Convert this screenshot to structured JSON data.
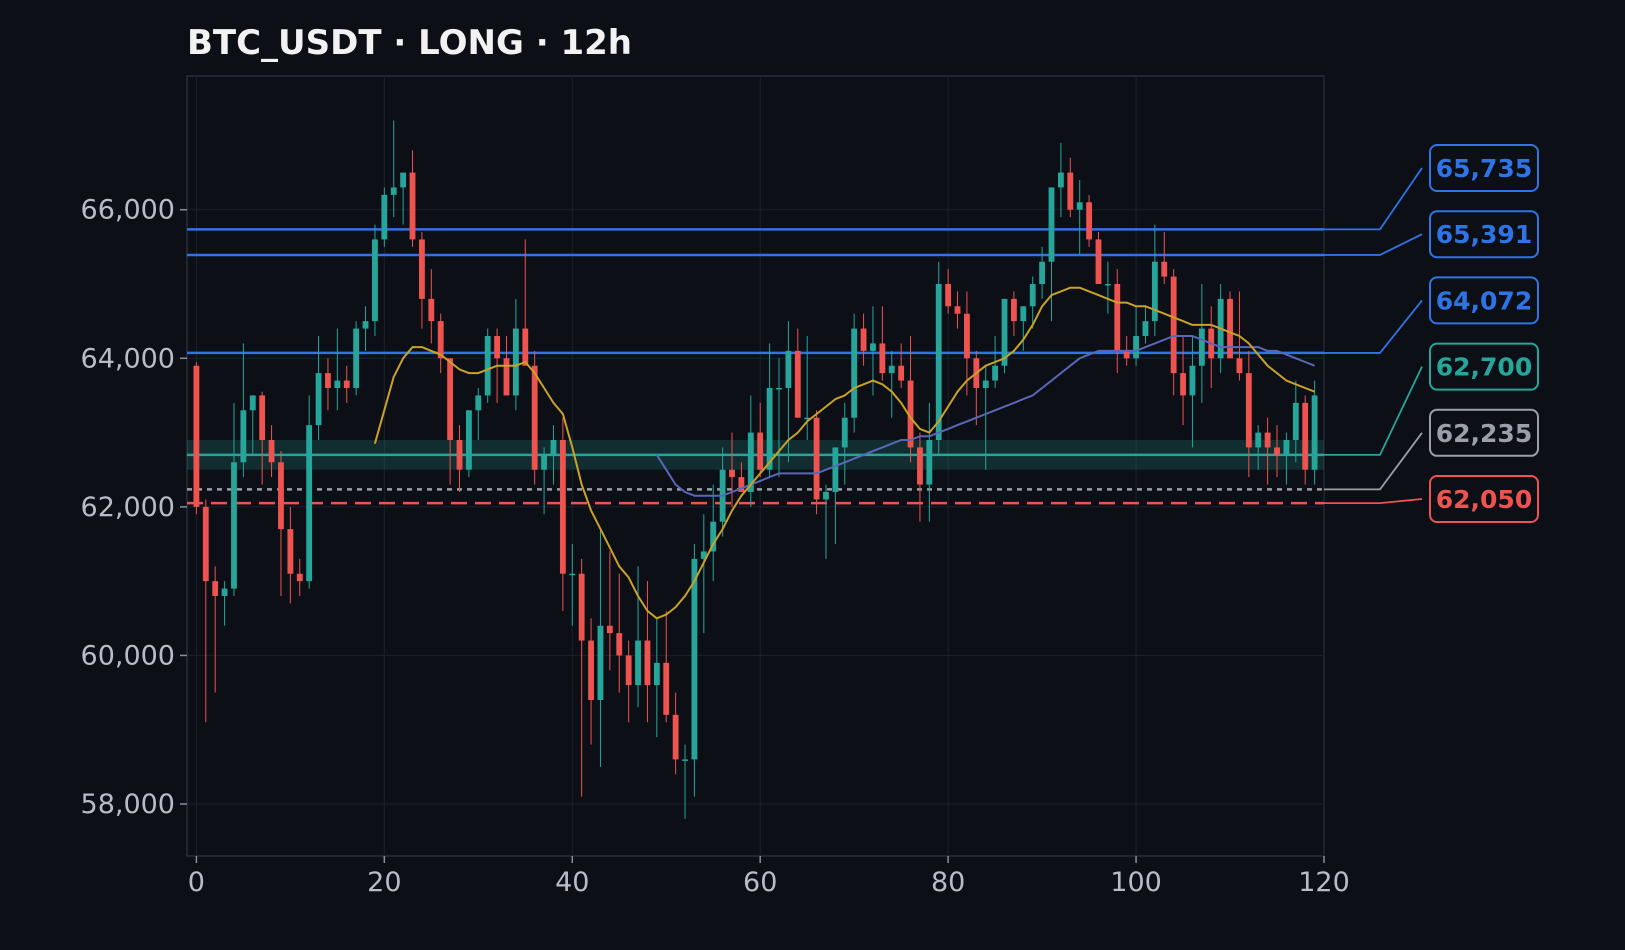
{
  "chart_data": {
    "type": "candlestick",
    "title": "BTC_USDT · LONG · 12h",
    "xlim": [
      -1,
      120
    ],
    "ylim": [
      57300,
      67800
    ],
    "x_ticks": [
      0,
      20,
      40,
      60,
      80,
      100,
      120
    ],
    "y_ticks": [
      58000,
      60000,
      62000,
      64000,
      66000
    ],
    "y_tick_labels": [
      "58,000",
      "60,000",
      "62,000",
      "64,000",
      "66,000"
    ],
    "grid": true,
    "colors": {
      "background": "#0c0f16",
      "up": "#26a69a",
      "down": "#ef5350",
      "ma_fast": "#c9a227",
      "ma_slow": "#5a67b8",
      "resistance": "#2f74e6",
      "entry": "#26a69a",
      "breakeven": "#9aa0a8",
      "stop": "#ef5350"
    },
    "candles_ohlc": [
      [
        63900,
        63950,
        61900,
        62000
      ],
      [
        62000,
        62100,
        59100,
        61000
      ],
      [
        61000,
        61200,
        59500,
        60800
      ],
      [
        60800,
        61000,
        60400,
        60900
      ],
      [
        60900,
        63400,
        60800,
        62600
      ],
      [
        62600,
        64200,
        62400,
        63300
      ],
      [
        63300,
        63500,
        62700,
        63500
      ],
      [
        63500,
        63550,
        62300,
        62900
      ],
      [
        62900,
        63100,
        62400,
        62600
      ],
      [
        62600,
        62750,
        60800,
        61700
      ],
      [
        61700,
        62000,
        60700,
        61100
      ],
      [
        61100,
        61300,
        60800,
        61000
      ],
      [
        61000,
        63500,
        60900,
        63100
      ],
      [
        63100,
        64300,
        62900,
        63800
      ],
      [
        63800,
        64000,
        63300,
        63600
      ],
      [
        63600,
        64400,
        63300,
        63700
      ],
      [
        63700,
        63900,
        63400,
        63600
      ],
      [
        63600,
        64500,
        63500,
        64400
      ],
      [
        64400,
        64700,
        64100,
        64500
      ],
      [
        64500,
        65800,
        64300,
        65600
      ],
      [
        65600,
        66300,
        65500,
        66200
      ],
      [
        66200,
        67200,
        65900,
        66300
      ],
      [
        66300,
        66400,
        65800,
        66500
      ],
      [
        66500,
        66800,
        65500,
        65600
      ],
      [
        65600,
        65700,
        64400,
        64800
      ],
      [
        64800,
        65200,
        64200,
        64500
      ],
      [
        64500,
        64600,
        63800,
        64000
      ],
      [
        64000,
        64000,
        62300,
        62900
      ],
      [
        62900,
        63100,
        62200,
        62500
      ],
      [
        62500,
        63300,
        62400,
        63300
      ],
      [
        63300,
        63600,
        62900,
        63500
      ],
      [
        63500,
        64400,
        63400,
        64300
      ],
      [
        64300,
        64400,
        63400,
        64000
      ],
      [
        64000,
        64300,
        63800,
        63500
      ],
      [
        63500,
        64800,
        63300,
        64400
      ],
      [
        64400,
        65600,
        63900,
        63900
      ],
      [
        63900,
        64100,
        62300,
        62500
      ],
      [
        62500,
        62800,
        61900,
        62700
      ],
      [
        62700,
        63100,
        62300,
        62900
      ],
      [
        62900,
        63200,
        60600,
        61100
      ],
      [
        61100,
        61500,
        60400,
        61100
      ],
      [
        61100,
        61300,
        58100,
        60200
      ],
      [
        60200,
        60500,
        58800,
        59400
      ],
      [
        59400,
        61700,
        58500,
        60400
      ],
      [
        60400,
        61400,
        59800,
        60300
      ],
      [
        60300,
        61100,
        59500,
        60000
      ],
      [
        60000,
        60200,
        59100,
        59600
      ],
      [
        59600,
        61200,
        59300,
        60200
      ],
      [
        60200,
        61000,
        59100,
        59600
      ],
      [
        59600,
        60500,
        58900,
        59900
      ],
      [
        59900,
        60600,
        59100,
        59200
      ],
      [
        59200,
        59500,
        58400,
        58600
      ],
      [
        58600,
        58800,
        57800,
        58600
      ],
      [
        58600,
        61500,
        58100,
        61300
      ],
      [
        61300,
        61900,
        60300,
        61400
      ],
      [
        61400,
        62300,
        61000,
        61800
      ],
      [
        61800,
        62800,
        61600,
        62500
      ],
      [
        62500,
        63000,
        62000,
        62400
      ],
      [
        62400,
        62600,
        62200,
        62200
      ],
      [
        62200,
        63500,
        62000,
        63000
      ],
      [
        63000,
        63400,
        62400,
        62500
      ],
      [
        62500,
        64200,
        62400,
        63600
      ],
      [
        63600,
        64000,
        62400,
        63600
      ],
      [
        63600,
        64500,
        62600,
        64100
      ],
      [
        64100,
        64400,
        63300,
        63200
      ],
      [
        63200,
        64300,
        62900,
        63200
      ],
      [
        63200,
        63300,
        61900,
        62100
      ],
      [
        62100,
        62300,
        61300,
        62200
      ],
      [
        62200,
        62700,
        61500,
        62800
      ],
      [
        62800,
        63400,
        62300,
        63200
      ],
      [
        63200,
        64600,
        63000,
        64400
      ],
      [
        64400,
        64600,
        63900,
        64100
      ],
      [
        64100,
        64700,
        63500,
        64200
      ],
      [
        64200,
        64700,
        63700,
        63800
      ],
      [
        63800,
        64100,
        63200,
        63900
      ],
      [
        63900,
        64200,
        63600,
        63700
      ],
      [
        63700,
        64300,
        62600,
        62800
      ],
      [
        62800,
        63000,
        61800,
        62300
      ],
      [
        62300,
        63400,
        61800,
        62900
      ],
      [
        62900,
        65300,
        62700,
        65000
      ],
      [
        65000,
        65200,
        64600,
        64700
      ],
      [
        64700,
        64900,
        64400,
        64600
      ],
      [
        64600,
        64900,
        63500,
        64000
      ],
      [
        64000,
        64100,
        63100,
        63600
      ],
      [
        63600,
        63900,
        62500,
        63700
      ],
      [
        63700,
        64300,
        63600,
        63900
      ],
      [
        63900,
        64800,
        63800,
        64800
      ],
      [
        64800,
        64900,
        64300,
        64500
      ],
      [
        64500,
        64700,
        64100,
        64700
      ],
      [
        64700,
        65100,
        64400,
        65000
      ],
      [
        65000,
        65500,
        64800,
        65300
      ],
      [
        65300,
        66300,
        64500,
        66300
      ],
      [
        66300,
        66900,
        65900,
        66500
      ],
      [
        66500,
        66700,
        65900,
        66000
      ],
      [
        66000,
        66400,
        65400,
        66100
      ],
      [
        66100,
        66200,
        65500,
        65600
      ],
      [
        65600,
        65700,
        65000,
        65000
      ],
      [
        65000,
        65300,
        64600,
        65000
      ],
      [
        65000,
        65200,
        63800,
        64100
      ],
      [
        64100,
        64300,
        63900,
        64000
      ],
      [
        64000,
        64700,
        63900,
        64300
      ],
      [
        64300,
        64700,
        64200,
        64500
      ],
      [
        64500,
        65800,
        64300,
        65300
      ],
      [
        65300,
        65700,
        65000,
        65100
      ],
      [
        65100,
        65200,
        63500,
        63800
      ],
      [
        63800,
        64300,
        63100,
        63500
      ],
      [
        63500,
        64300,
        62800,
        63900
      ],
      [
        63900,
        65000,
        63400,
        64400
      ],
      [
        64400,
        64700,
        63600,
        64000
      ],
      [
        64000,
        65000,
        63800,
        64800
      ],
      [
        64800,
        64900,
        64200,
        64000
      ],
      [
        64000,
        64900,
        63700,
        63800
      ],
      [
        63800,
        64100,
        62400,
        62800
      ],
      [
        62800,
        63100,
        62500,
        63000
      ],
      [
        63000,
        63200,
        62300,
        62800
      ],
      [
        62800,
        63100,
        62400,
        62700
      ],
      [
        62700,
        63000,
        62300,
        62900
      ],
      [
        62900,
        63700,
        62600,
        63400
      ],
      [
        63400,
        63500,
        62300,
        62500
      ],
      [
        62500,
        63700,
        62300,
        63500
      ]
    ],
    "ma_fast": {
      "x": [
        19,
        20,
        21,
        22,
        23,
        24,
        25,
        26,
        27,
        28,
        29,
        30,
        31,
        32,
        33,
        34,
        35,
        36,
        37,
        38,
        39,
        40,
        41,
        42,
        43,
        44,
        45,
        46,
        47,
        48,
        49,
        50,
        51,
        52,
        53,
        54,
        55,
        56,
        57,
        58,
        59,
        60,
        61,
        62,
        63,
        64,
        65,
        66,
        67,
        68,
        69,
        70,
        71,
        72,
        73,
        74,
        75,
        76,
        77,
        78,
        79,
        80,
        81,
        82,
        83,
        84,
        85,
        86,
        87,
        88,
        89,
        90,
        91,
        92,
        93,
        94,
        95,
        96,
        97,
        98,
        99,
        100,
        101,
        102,
        103,
        104,
        105,
        106,
        107,
        108,
        109,
        110,
        111,
        112,
        113,
        114,
        115,
        116,
        117,
        118,
        119
      ],
      "y": [
        62850,
        63300,
        63750,
        64000,
        64150,
        64150,
        64100,
        64050,
        63950,
        63850,
        63800,
        63800,
        63850,
        63900,
        63900,
        63900,
        63950,
        63800,
        63600,
        63400,
        63250,
        62800,
        62300,
        61950,
        61700,
        61450,
        61200,
        61050,
        60800,
        60600,
        60500,
        60550,
        60650,
        60800,
        61000,
        61250,
        61500,
        61700,
        61950,
        62150,
        62300,
        62450,
        62600,
        62750,
        62900,
        63000,
        63150,
        63250,
        63350,
        63450,
        63500,
        63600,
        63650,
        63700,
        63650,
        63550,
        63400,
        63200,
        63050,
        63000,
        63150,
        63350,
        63550,
        63700,
        63800,
        63900,
        63950,
        64000,
        64100,
        64250,
        64450,
        64700,
        64850,
        64900,
        64950,
        64950,
        64900,
        64850,
        64800,
        64750,
        64750,
        64700,
        64700,
        64650,
        64600,
        64550,
        64500,
        64450,
        64450,
        64450,
        64400,
        64350,
        64300,
        64200,
        64050,
        63900,
        63800,
        63700,
        63650,
        63600,
        63550
      ]
    },
    "ma_slow": {
      "x": [
        49,
        50,
        51,
        52,
        53,
        54,
        55,
        56,
        57,
        58,
        59,
        60,
        61,
        62,
        63,
        64,
        65,
        66,
        67,
        68,
        69,
        70,
        71,
        72,
        73,
        74,
        75,
        76,
        77,
        78,
        79,
        80,
        81,
        82,
        83,
        84,
        85,
        86,
        87,
        88,
        89,
        90,
        91,
        92,
        93,
        94,
        95,
        96,
        97,
        98,
        99,
        100,
        101,
        102,
        103,
        104,
        105,
        106,
        107,
        108,
        109,
        110,
        111,
        112,
        113,
        114,
        115,
        116,
        117,
        118,
        119
      ],
      "y": [
        62700,
        62500,
        62300,
        62200,
        62150,
        62150,
        62150,
        62150,
        62200,
        62250,
        62300,
        62350,
        62400,
        62450,
        62450,
        62450,
        62450,
        62450,
        62500,
        62550,
        62600,
        62650,
        62700,
        62750,
        62800,
        62850,
        62900,
        62900,
        62950,
        62950,
        63000,
        63050,
        63100,
        63150,
        63200,
        63250,
        63300,
        63350,
        63400,
        63450,
        63500,
        63600,
        63700,
        63800,
        63900,
        64000,
        64050,
        64100,
        64100,
        64100,
        64100,
        64100,
        64150,
        64200,
        64250,
        64300,
        64300,
        64300,
        64250,
        64200,
        64150,
        64150,
        64150,
        64150,
        64150,
        64100,
        64100,
        64050,
        64000,
        63950,
        63900
      ]
    },
    "levels": [
      {
        "value": 65735,
        "label": "65,735",
        "style": "solid",
        "color": "#2f74e6",
        "role": "resistance"
      },
      {
        "value": 65391,
        "label": "65,391",
        "style": "solid",
        "color": "#2f74e6",
        "role": "resistance"
      },
      {
        "value": 64072,
        "label": "64,072",
        "style": "solid",
        "color": "#2f74e6",
        "role": "resistance"
      },
      {
        "value": 62700,
        "label": "62,700",
        "style": "solid",
        "color": "#26a69a",
        "role": "entry",
        "zone": [
          62500,
          62900
        ]
      },
      {
        "value": 62235,
        "label": "62,235",
        "style": "dotted",
        "color": "#9aa0a8",
        "role": "breakeven"
      },
      {
        "value": 62050,
        "label": "62,050",
        "style": "dashed",
        "color": "#ef5350",
        "role": "stop"
      }
    ]
  }
}
